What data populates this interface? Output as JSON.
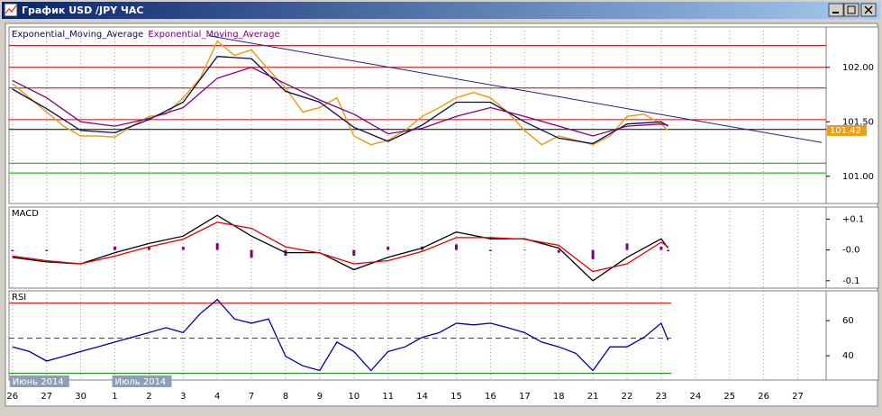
{
  "window": {
    "title": "График USD /JPY ЧАС"
  },
  "chart_data": [
    {
      "type": "line",
      "xlim": [
        -0.1,
        23.83
      ],
      "ylim": [
        100.75,
        102.37
      ],
      "yticks": [
        {
          "value": 101,
          "label": "101.00"
        },
        {
          "value": 101.5,
          "label": "101.50"
        },
        {
          "value": 102,
          "label": "102.00"
        }
      ],
      "x": [
        0,
        0.5,
        1,
        1.5,
        2,
        2.5,
        3,
        3.5,
        4,
        4.5,
        5,
        5.5,
        6,
        6.5,
        7,
        7.5,
        8,
        8.5,
        9,
        9.5,
        10,
        10.5,
        11,
        11.5,
        12,
        12.5,
        13,
        13.5,
        14,
        14.5,
        15,
        15.5,
        16,
        16.5,
        17,
        17.5,
        18,
        18.5,
        19,
        19.2
      ],
      "series": [
        {
          "color": "#e8a01c",
          "values": [
            101.85,
            101.72,
            101.59,
            101.46,
            101.37,
            101.37,
            101.36,
            101.46,
            101.55,
            101.57,
            101.72,
            101.9,
            102.24,
            102.11,
            102.16,
            101.98,
            101.81,
            101.59,
            101.63,
            101.72,
            101.37,
            101.29,
            101.33,
            101.42,
            101.55,
            101.63,
            101.72,
            101.77,
            101.72,
            101.59,
            101.42,
            101.29,
            101.37,
            101.33,
            101.29,
            101.37,
            101.55,
            101.57,
            101.48,
            101.42
          ]
        },
        {
          "name": "Exponential_Moving_Average",
          "color": "#0a0a50",
          "x": [
            0,
            1,
            2,
            3,
            4,
            5,
            6,
            7,
            8,
            9,
            10,
            11,
            12,
            13,
            14,
            15,
            16,
            17,
            18,
            19,
            19.2
          ],
          "values": [
            101.8,
            101.62,
            101.42,
            101.4,
            101.52,
            101.68,
            102.1,
            102.08,
            101.78,
            101.68,
            101.45,
            101.32,
            101.47,
            101.68,
            101.68,
            101.5,
            101.35,
            101.3,
            101.48,
            101.5,
            101.46
          ]
        },
        {
          "name": "Exponential_Moving_Average",
          "color": "#800080",
          "x": [
            0,
            1,
            2,
            3,
            4,
            5,
            6,
            7,
            8,
            9,
            10,
            11,
            12,
            13,
            14,
            15,
            16,
            17,
            18,
            19,
            19.2
          ],
          "values": [
            101.88,
            101.72,
            101.5,
            101.46,
            101.53,
            101.63,
            101.9,
            102,
            101.85,
            101.7,
            101.57,
            101.39,
            101.44,
            101.55,
            101.63,
            101.55,
            101.46,
            101.37,
            101.46,
            101.48,
            101.47
          ]
        }
      ],
      "levels": [
        {
          "value": 102.2,
          "color": "#cc0000"
        },
        {
          "value": 102,
          "color": "#cc0000"
        },
        {
          "value": 101.81,
          "color": "#cc0000"
        },
        {
          "value": 101.52,
          "color": "#cc0000"
        },
        {
          "value": 101.43,
          "color": "#000000"
        },
        {
          "value": 101.12,
          "color": "#00a000"
        },
        {
          "value": 101.03,
          "color": "#00a000"
        }
      ],
      "trendline": {
        "color": "#202080",
        "x": [
          5.74,
          23.7
        ],
        "values": [
          102.29,
          101.31
        ]
      },
      "last_value": 101.42,
      "last_color": "#e8a01c"
    },
    {
      "type": "macd",
      "title": "MACD",
      "xlim": [
        -0.1,
        23.83
      ],
      "ylim": [
        -0.124,
        0.139
      ],
      "yticks": [
        {
          "value": 0.1,
          "label": "+0.1"
        },
        {
          "value": 0,
          "label": "-0.0"
        },
        {
          "value": -0.1,
          "label": "-0.1"
        }
      ],
      "x": [
        0,
        1,
        2,
        3,
        4,
        5,
        6,
        7,
        8,
        9,
        10,
        11,
        12,
        13,
        14,
        15,
        16,
        17,
        18,
        19,
        19.2
      ],
      "series": [
        {
          "color": "#800080",
          "kind": "bar",
          "values": [
            -0.004,
            -0.004,
            0,
            0.011,
            0.011,
            0.01,
            0.022,
            -0.025,
            -0.019,
            0.001,
            -0.019,
            0.011,
            0.011,
            0.018,
            -0.004,
            0.001,
            -0.009,
            -0.03,
            0.021,
            0.011,
            -0.004
          ]
        },
        {
          "color": "#000000",
          "values": [
            -0.024,
            -0.039,
            -0.045,
            -0.009,
            0.021,
            0.045,
            0.112,
            0.045,
            -0.009,
            -0.009,
            -0.064,
            -0.024,
            0.006,
            0.058,
            0.036,
            0.036,
            0.006,
            -0.1,
            -0.024,
            0.036,
            0.006
          ]
        },
        {
          "color": "#e00000",
          "values": [
            -0.02,
            -0.035,
            -0.045,
            -0.02,
            0.01,
            0.035,
            0.09,
            0.07,
            0.01,
            -0.01,
            -0.045,
            -0.035,
            -0.005,
            0.04,
            0.04,
            0.035,
            0.015,
            -0.07,
            -0.045,
            0.025,
            0.01
          ]
        }
      ]
    },
    {
      "type": "rsi",
      "title": "RSI",
      "xlim": [
        -0.1,
        23.83
      ],
      "ylim": [
        26.2,
        77
      ],
      "yticks": [
        40,
        60
      ],
      "x": [
        0,
        0.5,
        1,
        1.5,
        2,
        2.5,
        3,
        3.5,
        4,
        4.5,
        5,
        5.5,
        6,
        6.5,
        7,
        7.5,
        8,
        8.5,
        9,
        9.5,
        10,
        10.5,
        11,
        11.5,
        12,
        12.5,
        13,
        13.5,
        14,
        14.5,
        15,
        15.5,
        16,
        16.5,
        17,
        17.5,
        18,
        18.5,
        19,
        19.2
      ],
      "series": [
        {
          "color": "#0000a0",
          "values": [
            45.1,
            42.4,
            37,
            39.7,
            42.4,
            45.1,
            47.8,
            50.5,
            53.2,
            56,
            53.2,
            64,
            72,
            61,
            58.6,
            61,
            39.7,
            34.3,
            31.6,
            47.8,
            42.4,
            31.6,
            42.4,
            45.1,
            50.5,
            53.2,
            58.6,
            57.6,
            58.6,
            56,
            53.2,
            47.8,
            45.1,
            41.4,
            31.6,
            45.1,
            45.1,
            50.5,
            58.6,
            48.9
          ]
        }
      ],
      "levels": [
        {
          "value": 70,
          "color": "#e00000"
        },
        {
          "value": 50,
          "color": "#800080",
          "dashed": true
        },
        {
          "value": 30,
          "color": "#008000"
        }
      ],
      "xticks": [
        {
          "value": 0,
          "label": "26"
        },
        {
          "value": 1,
          "label": "27"
        },
        {
          "value": 2,
          "label": "30"
        },
        {
          "value": 3,
          "label": "1"
        },
        {
          "value": 4,
          "label": "2"
        },
        {
          "value": 5,
          "label": "3"
        },
        {
          "value": 6,
          "label": "4"
        },
        {
          "value": 7,
          "label": "7"
        },
        {
          "value": 8,
          "label": "8"
        },
        {
          "value": 9,
          "label": "9"
        },
        {
          "value": 10,
          "label": "10"
        },
        {
          "value": 11,
          "label": "11"
        },
        {
          "value": 12,
          "label": "14"
        },
        {
          "value": 13,
          "label": "15"
        },
        {
          "value": 14,
          "label": "16"
        },
        {
          "value": 15,
          "label": "17"
        },
        {
          "value": 16,
          "label": "18"
        },
        {
          "value": 17,
          "label": "21"
        },
        {
          "value": 18,
          "label": "22"
        },
        {
          "value": 19,
          "label": "23"
        },
        {
          "value": 20,
          "label": "24"
        },
        {
          "value": 21,
          "label": "25"
        },
        {
          "value": 22,
          "label": "26"
        },
        {
          "value": 23,
          "label": "27"
        }
      ],
      "periods": [
        {
          "value": 0,
          "label": "Июнь 2014"
        },
        {
          "value": 3,
          "label": "Июль 2014"
        }
      ]
    }
  ]
}
